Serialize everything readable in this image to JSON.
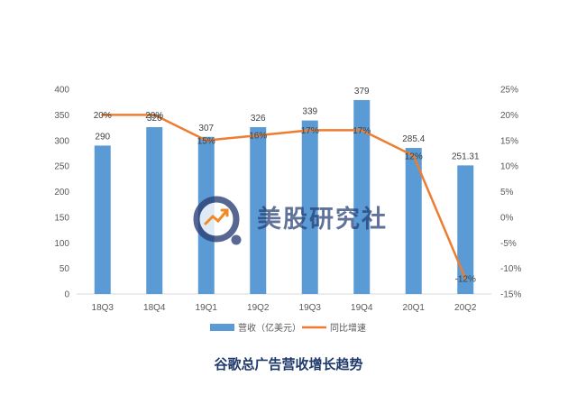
{
  "chart_data": {
    "type": "bar+line",
    "title": "谷歌总广告营收增长趋势",
    "categories": [
      "18Q3",
      "18Q4",
      "19Q1",
      "19Q2",
      "19Q3",
      "19Q4",
      "20Q1",
      "20Q2"
    ],
    "series": [
      {
        "name": "营收（亿美元）",
        "type": "bar",
        "axis": "left",
        "color": "#5b9bd5",
        "values": [
          290,
          326,
          307,
          326,
          339,
          379,
          285.4,
          251.31
        ],
        "labels": [
          "290",
          "326",
          "307",
          "326",
          "339",
          "379",
          "285.4",
          "251.31"
        ]
      },
      {
        "name": "同比增速",
        "type": "line",
        "axis": "right",
        "color": "#ed7d31",
        "values": [
          20,
          20,
          15,
          16,
          17,
          17,
          12,
          -12
        ],
        "labels": [
          "20%",
          "20%",
          "15%",
          "16%",
          "17%",
          "17%",
          "12%",
          "-12%"
        ]
      }
    ],
    "y_left": {
      "min": 0,
      "max": 400,
      "step": 50,
      "ticks": [
        "0",
        "50",
        "100",
        "150",
        "200",
        "250",
        "300",
        "350",
        "400"
      ]
    },
    "y_right": {
      "min": -15,
      "max": 25,
      "step": 5,
      "ticks": [
        "-15%",
        "-10%",
        "-5%",
        "0%",
        "5%",
        "10%",
        "15%",
        "20%",
        "25%"
      ]
    },
    "grid": false,
    "legend_position": "bottom"
  },
  "watermark": {
    "text": "美股研究社"
  }
}
